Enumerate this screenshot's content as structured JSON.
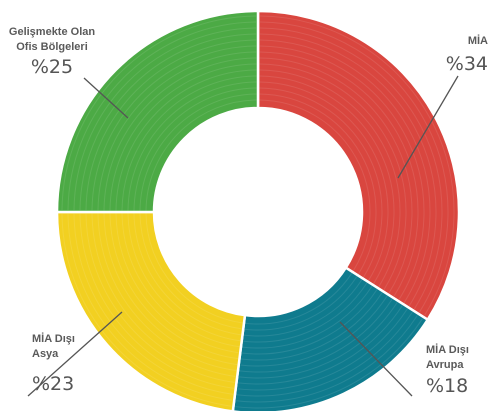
{
  "chart_data": {
    "type": "pie",
    "title": "",
    "categories": [
      "MİA",
      "MİA Dışı Avrupa",
      "MİA Dışı Asya",
      "Gelişmekte Olan Ofis Bölgeleri"
    ],
    "values": [
      34,
      18,
      23,
      25
    ],
    "series": [
      {
        "label": "MİA",
        "value": 34,
        "display": "%34",
        "color": "#d9463f"
      },
      {
        "label": "MİA Dışı Avrupa",
        "value": 18,
        "display": "%18",
        "color": "#0f7b8e"
      },
      {
        "label": "MİA Dışı Asya",
        "value": 23,
        "display": "%23",
        "color": "#f2d021"
      },
      {
        "label": "Gelişmekte Olan Ofis Bölgeleri",
        "value": 25,
        "display": "%25",
        "color": "#4caa45"
      }
    ],
    "legend": "none",
    "donut": true
  }
}
